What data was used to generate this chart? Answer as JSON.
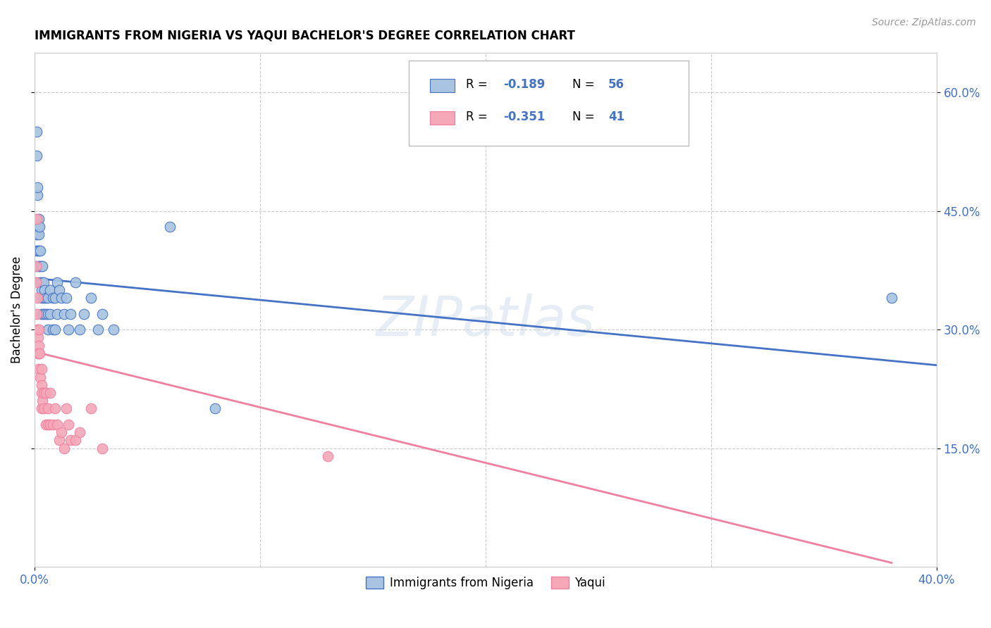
{
  "title": "IMMIGRANTS FROM NIGERIA VS YAQUI BACHELOR'S DEGREE CORRELATION CHART",
  "source": "Source: ZipAtlas.com",
  "ylabel": "Bachelor's Degree",
  "watermark": "ZIPatlas",
  "legend_label1": "Immigrants from Nigeria",
  "legend_label2": "Yaqui",
  "color_blue": "#a8c4e0",
  "color_pink": "#f4a8b8",
  "line_blue": "#4472c4",
  "line_pink": "#f07fa0",
  "text_blue": "#4472c4",
  "nigeria_x": [
    0.0005,
    0.0007,
    0.0008,
    0.001,
    0.001,
    0.0012,
    0.0013,
    0.0015,
    0.0015,
    0.0018,
    0.002,
    0.002,
    0.002,
    0.0022,
    0.0022,
    0.0025,
    0.0025,
    0.003,
    0.003,
    0.003,
    0.003,
    0.0032,
    0.0035,
    0.004,
    0.004,
    0.004,
    0.0045,
    0.005,
    0.005,
    0.006,
    0.006,
    0.006,
    0.007,
    0.007,
    0.008,
    0.008,
    0.009,
    0.009,
    0.01,
    0.01,
    0.011,
    0.012,
    0.013,
    0.014,
    0.015,
    0.016,
    0.018,
    0.02,
    0.022,
    0.025,
    0.028,
    0.03,
    0.035,
    0.06,
    0.08,
    0.38
  ],
  "nigeria_y": [
    0.4,
    0.38,
    0.42,
    0.55,
    0.52,
    0.47,
    0.48,
    0.43,
    0.4,
    0.44,
    0.42,
    0.4,
    0.38,
    0.43,
    0.38,
    0.4,
    0.36,
    0.38,
    0.35,
    0.34,
    0.32,
    0.36,
    0.38,
    0.36,
    0.34,
    0.32,
    0.35,
    0.34,
    0.32,
    0.34,
    0.32,
    0.3,
    0.35,
    0.32,
    0.34,
    0.3,
    0.34,
    0.3,
    0.36,
    0.32,
    0.35,
    0.34,
    0.32,
    0.34,
    0.3,
    0.32,
    0.36,
    0.3,
    0.32,
    0.34,
    0.3,
    0.32,
    0.3,
    0.43,
    0.2,
    0.34
  ],
  "yaqui_x": [
    0.0005,
    0.0007,
    0.0009,
    0.001,
    0.0012,
    0.0013,
    0.0015,
    0.0015,
    0.0018,
    0.002,
    0.002,
    0.002,
    0.0022,
    0.0025,
    0.003,
    0.003,
    0.003,
    0.0032,
    0.0035,
    0.004,
    0.004,
    0.005,
    0.005,
    0.006,
    0.006,
    0.007,
    0.007,
    0.008,
    0.009,
    0.01,
    0.011,
    0.012,
    0.013,
    0.014,
    0.015,
    0.016,
    0.018,
    0.02,
    0.025,
    0.03,
    0.13
  ],
  "yaqui_y": [
    0.38,
    0.36,
    0.32,
    0.44,
    0.34,
    0.3,
    0.29,
    0.27,
    0.28,
    0.3,
    0.27,
    0.25,
    0.27,
    0.24,
    0.25,
    0.23,
    0.2,
    0.22,
    0.21,
    0.22,
    0.2,
    0.22,
    0.18,
    0.2,
    0.18,
    0.22,
    0.18,
    0.18,
    0.2,
    0.18,
    0.16,
    0.17,
    0.15,
    0.2,
    0.18,
    0.16,
    0.16,
    0.17,
    0.2,
    0.15,
    0.14
  ],
  "xmin": 0.0,
  "xmax": 0.4,
  "ymin": 0.0,
  "ymax": 0.65,
  "x_tick_step": 0.15,
  "y_tick_step": 0.15,
  "nigeria_line_x": [
    0.0,
    0.4
  ],
  "nigeria_line_y": [
    0.365,
    0.255
  ],
  "yaqui_line_x": [
    0.0,
    0.38
  ],
  "yaqui_line_y": [
    0.272,
    0.005
  ]
}
